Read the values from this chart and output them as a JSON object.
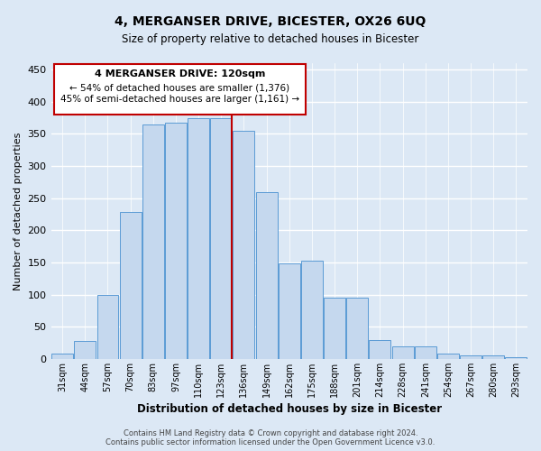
{
  "title1": "4, MERGANSER DRIVE, BICESTER, OX26 6UQ",
  "title2": "Size of property relative to detached houses in Bicester",
  "xlabel": "Distribution of detached houses by size in Bicester",
  "ylabel": "Number of detached properties",
  "footnote1": "Contains HM Land Registry data © Crown copyright and database right 2024.",
  "footnote2": "Contains public sector information licensed under the Open Government Licence v3.0.",
  "annotation_line1": "4 MERGANSER DRIVE: 120sqm",
  "annotation_line2": "← 54% of detached houses are smaller (1,376)",
  "annotation_line3": "45% of semi-detached houses are larger (1,161) →",
  "bar_labels": [
    "31sqm",
    "44sqm",
    "57sqm",
    "70sqm",
    "83sqm",
    "97sqm",
    "110sqm",
    "123sqm",
    "136sqm",
    "149sqm",
    "162sqm",
    "175sqm",
    "188sqm",
    "201sqm",
    "214sqm",
    "228sqm",
    "241sqm",
    "254sqm",
    "267sqm",
    "280sqm",
    "293sqm"
  ],
  "bar_heights": [
    8,
    28,
    100,
    228,
    365,
    368,
    375,
    375,
    355,
    260,
    148,
    153,
    95,
    95,
    30,
    20,
    20,
    8,
    5,
    5,
    3
  ],
  "redline_bar_index": 7,
  "bar_color": "#c5d8ee",
  "bar_edge_color": "#5b9bd5",
  "red_line_color": "#c00000",
  "background_color": "#dce8f5",
  "grid_color": "#ffffff",
  "ylim": [
    0,
    460
  ],
  "yticks": [
    0,
    50,
    100,
    150,
    200,
    250,
    300,
    350,
    400,
    450
  ]
}
